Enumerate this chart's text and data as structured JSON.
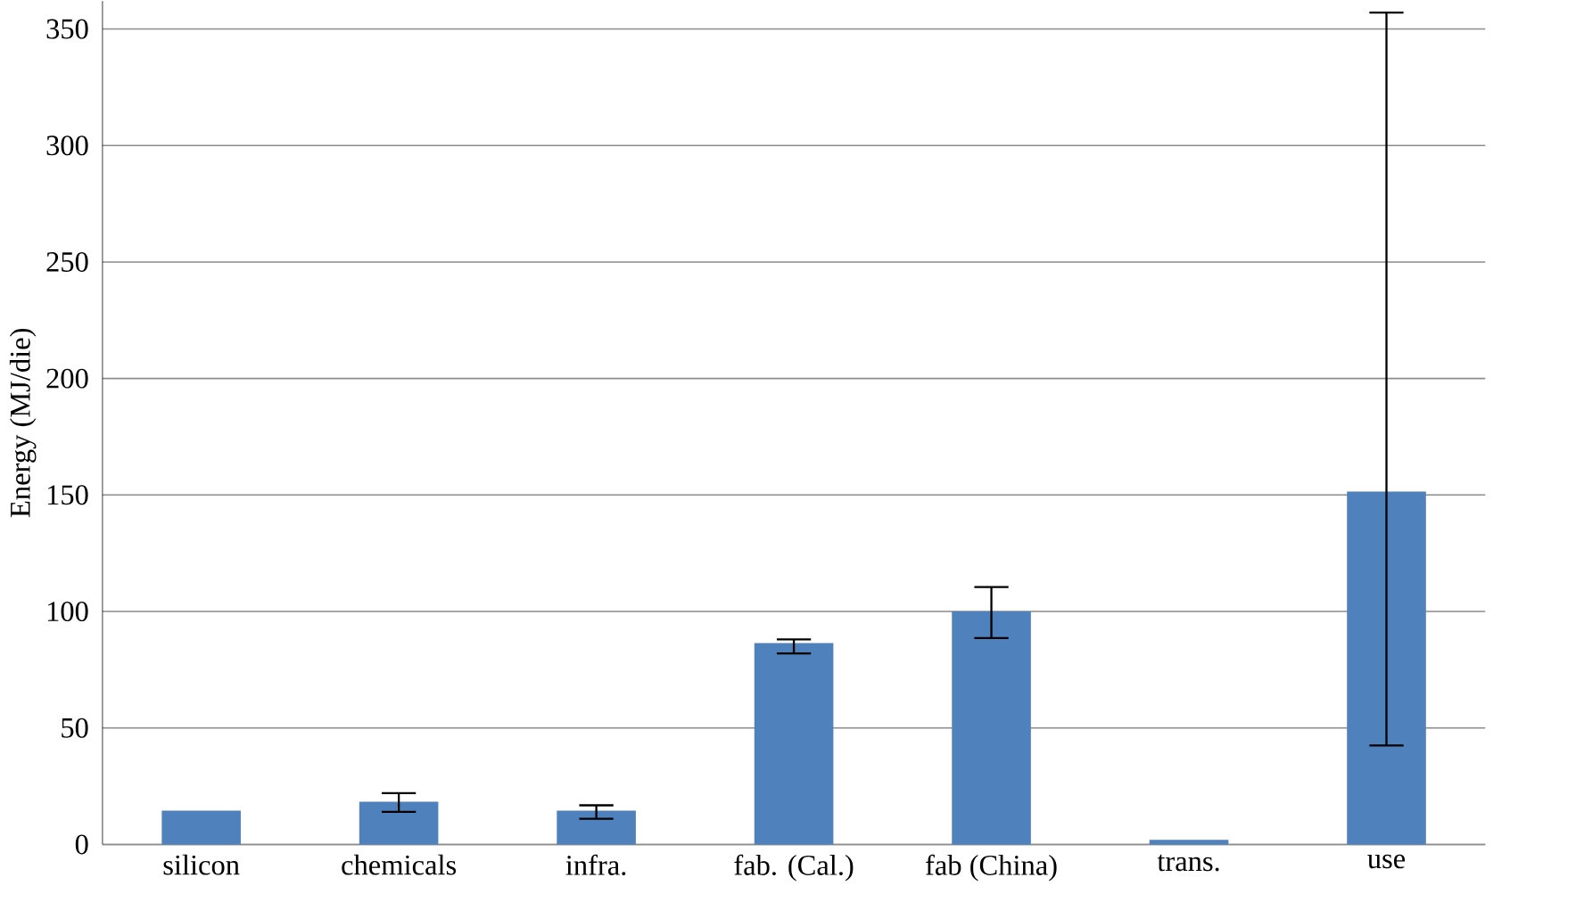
{
  "chart_data": {
    "type": "bar",
    "ylabel": "Energy (MJ/die)",
    "categories": [
      "silicon",
      "chemicals",
      "infra.",
      "fab. (Cal.)",
      "fab (China)",
      "trans.",
      "use"
    ],
    "values": [
      14.5,
      18.3,
      14.5,
      86.4,
      100,
      2,
      151.5
    ],
    "errors": [
      null,
      [
        14,
        22
      ],
      [
        11,
        16.8
      ],
      [
        82,
        88
      ],
      [
        88.6,
        110.5
      ],
      null,
      [
        42.5,
        357
      ]
    ],
    "color": "#4f81bd",
    "ylim": [
      0,
      362
    ],
    "yticks": [
      0,
      50,
      100,
      150,
      200,
      250,
      300,
      350
    ],
    "grid": "y"
  }
}
